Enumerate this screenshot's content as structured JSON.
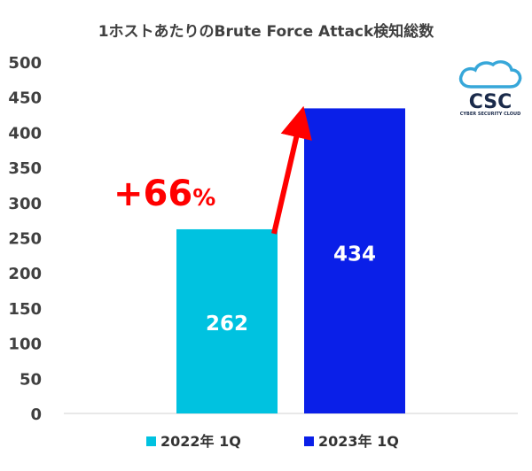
{
  "chart_data": {
    "type": "bar",
    "title": "1ホストあたりのBrute Force Attack検知総数",
    "categories": [
      "2022年 1Q",
      "2023年 1Q"
    ],
    "series": [
      {
        "name": "2022年 1Q",
        "values": [
          262,
          null
        ],
        "color": "#00c2e0"
      },
      {
        "name": "2023年 1Q",
        "values": [
          null,
          434
        ],
        "color": "#0a1fe8"
      }
    ],
    "ylim": [
      0,
      500
    ],
    "yticks": [
      0,
      50,
      100,
      150,
      200,
      250,
      300,
      350,
      400,
      450,
      500
    ],
    "grid": false,
    "legend_position": "bottom",
    "data_labels": [
      "262",
      "434"
    ],
    "annotation": {
      "text": "+66",
      "unit": "%",
      "color": "#ff0000",
      "arrow": "increase from 2022年 1Q to 2023年 1Q"
    }
  },
  "logo": {
    "name": "cloud-logo-icon",
    "text": "CSC",
    "subtext": "CYBER SECURITY CLOUD"
  }
}
